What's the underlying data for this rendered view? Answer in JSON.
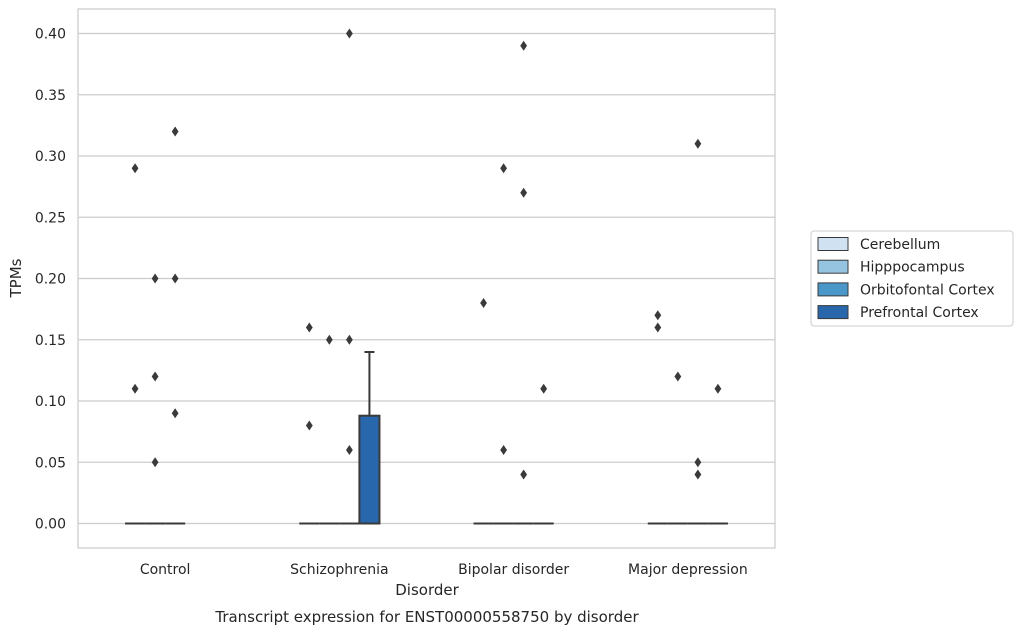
{
  "chart_data": {
    "type": "box",
    "caption": "Transcript expression for ENST00000558750 by disorder",
    "xlabel": "Disorder",
    "ylabel": "TPMs",
    "ylim": [
      -0.02,
      0.42
    ],
    "yticks": [
      0.0,
      0.05,
      0.1,
      0.15,
      0.2,
      0.25,
      0.3,
      0.35,
      0.4
    ],
    "ytick_labels": [
      "0.00",
      "0.05",
      "0.10",
      "0.15",
      "0.20",
      "0.25",
      "0.30",
      "0.35",
      "0.40"
    ],
    "grid": true,
    "legend_position": "right-center",
    "categories": [
      "Control",
      "Schizophrenia",
      "Bipolar disorder",
      "Major depression"
    ],
    "series": [
      {
        "name": "Cerebellum",
        "color": "#d0e1f2",
        "boxes": [
          {
            "q1": 0,
            "median": 0,
            "q3": 0,
            "whisker_low": 0,
            "whisker_high": 0,
            "outliers": [
              0.29,
              0.11
            ]
          },
          {
            "q1": 0,
            "median": 0,
            "q3": 0,
            "whisker_low": 0,
            "whisker_high": 0,
            "outliers": [
              0.16,
              0.08
            ]
          },
          {
            "q1": 0,
            "median": 0,
            "q3": 0,
            "whisker_low": 0,
            "whisker_high": 0,
            "outliers": [
              0.18
            ]
          },
          {
            "q1": 0,
            "median": 0,
            "q3": 0,
            "whisker_low": 0,
            "whisker_high": 0,
            "outliers": [
              0.17,
              0.16
            ]
          }
        ]
      },
      {
        "name": "Hipppocampus",
        "color": "#94c4df",
        "boxes": [
          {
            "q1": 0,
            "median": 0,
            "q3": 0,
            "whisker_low": 0,
            "whisker_high": 0,
            "outliers": [
              0.2,
              0.12,
              0.05
            ]
          },
          {
            "q1": 0,
            "median": 0,
            "q3": 0,
            "whisker_low": 0,
            "whisker_high": 0,
            "outliers": [
              0.15
            ]
          },
          {
            "q1": 0,
            "median": 0,
            "q3": 0,
            "whisker_low": 0,
            "whisker_high": 0,
            "outliers": [
              0.29,
              0.06
            ]
          },
          {
            "q1": 0,
            "median": 0,
            "q3": 0,
            "whisker_low": 0,
            "whisker_high": 0,
            "outliers": [
              0.12
            ]
          }
        ]
      },
      {
        "name": "Orbitofontal Cortex",
        "color": "#4a98c9",
        "boxes": [
          {
            "q1": 0,
            "median": 0,
            "q3": 0,
            "whisker_low": 0,
            "whisker_high": 0,
            "outliers": [
              0.32,
              0.2,
              0.09
            ]
          },
          {
            "q1": 0,
            "median": 0,
            "q3": 0,
            "whisker_low": 0,
            "whisker_high": 0,
            "outliers": [
              0.4,
              0.15,
              0.06
            ]
          },
          {
            "q1": 0,
            "median": 0,
            "q3": 0,
            "whisker_low": 0,
            "whisker_high": 0,
            "outliers": [
              0.39,
              0.27,
              0.04
            ]
          },
          {
            "q1": 0,
            "median": 0,
            "q3": 0,
            "whisker_low": 0,
            "whisker_high": 0,
            "outliers": [
              0.31,
              0.05,
              0.04
            ]
          }
        ]
      },
      {
        "name": "Prefrontal Cortex",
        "color": "#2967ac",
        "boxes": [
          null,
          {
            "q1": 0,
            "median": 0,
            "q3": 0.088,
            "whisker_low": 0,
            "whisker_high": 0.14,
            "outliers": []
          },
          {
            "q1": 0,
            "median": 0,
            "q3": 0,
            "whisker_low": 0,
            "whisker_high": 0,
            "outliers": [
              0.11
            ]
          },
          {
            "q1": 0,
            "median": 0,
            "q3": 0,
            "whisker_low": 0,
            "whisker_high": 0,
            "outliers": [
              0.11
            ]
          }
        ]
      }
    ]
  }
}
